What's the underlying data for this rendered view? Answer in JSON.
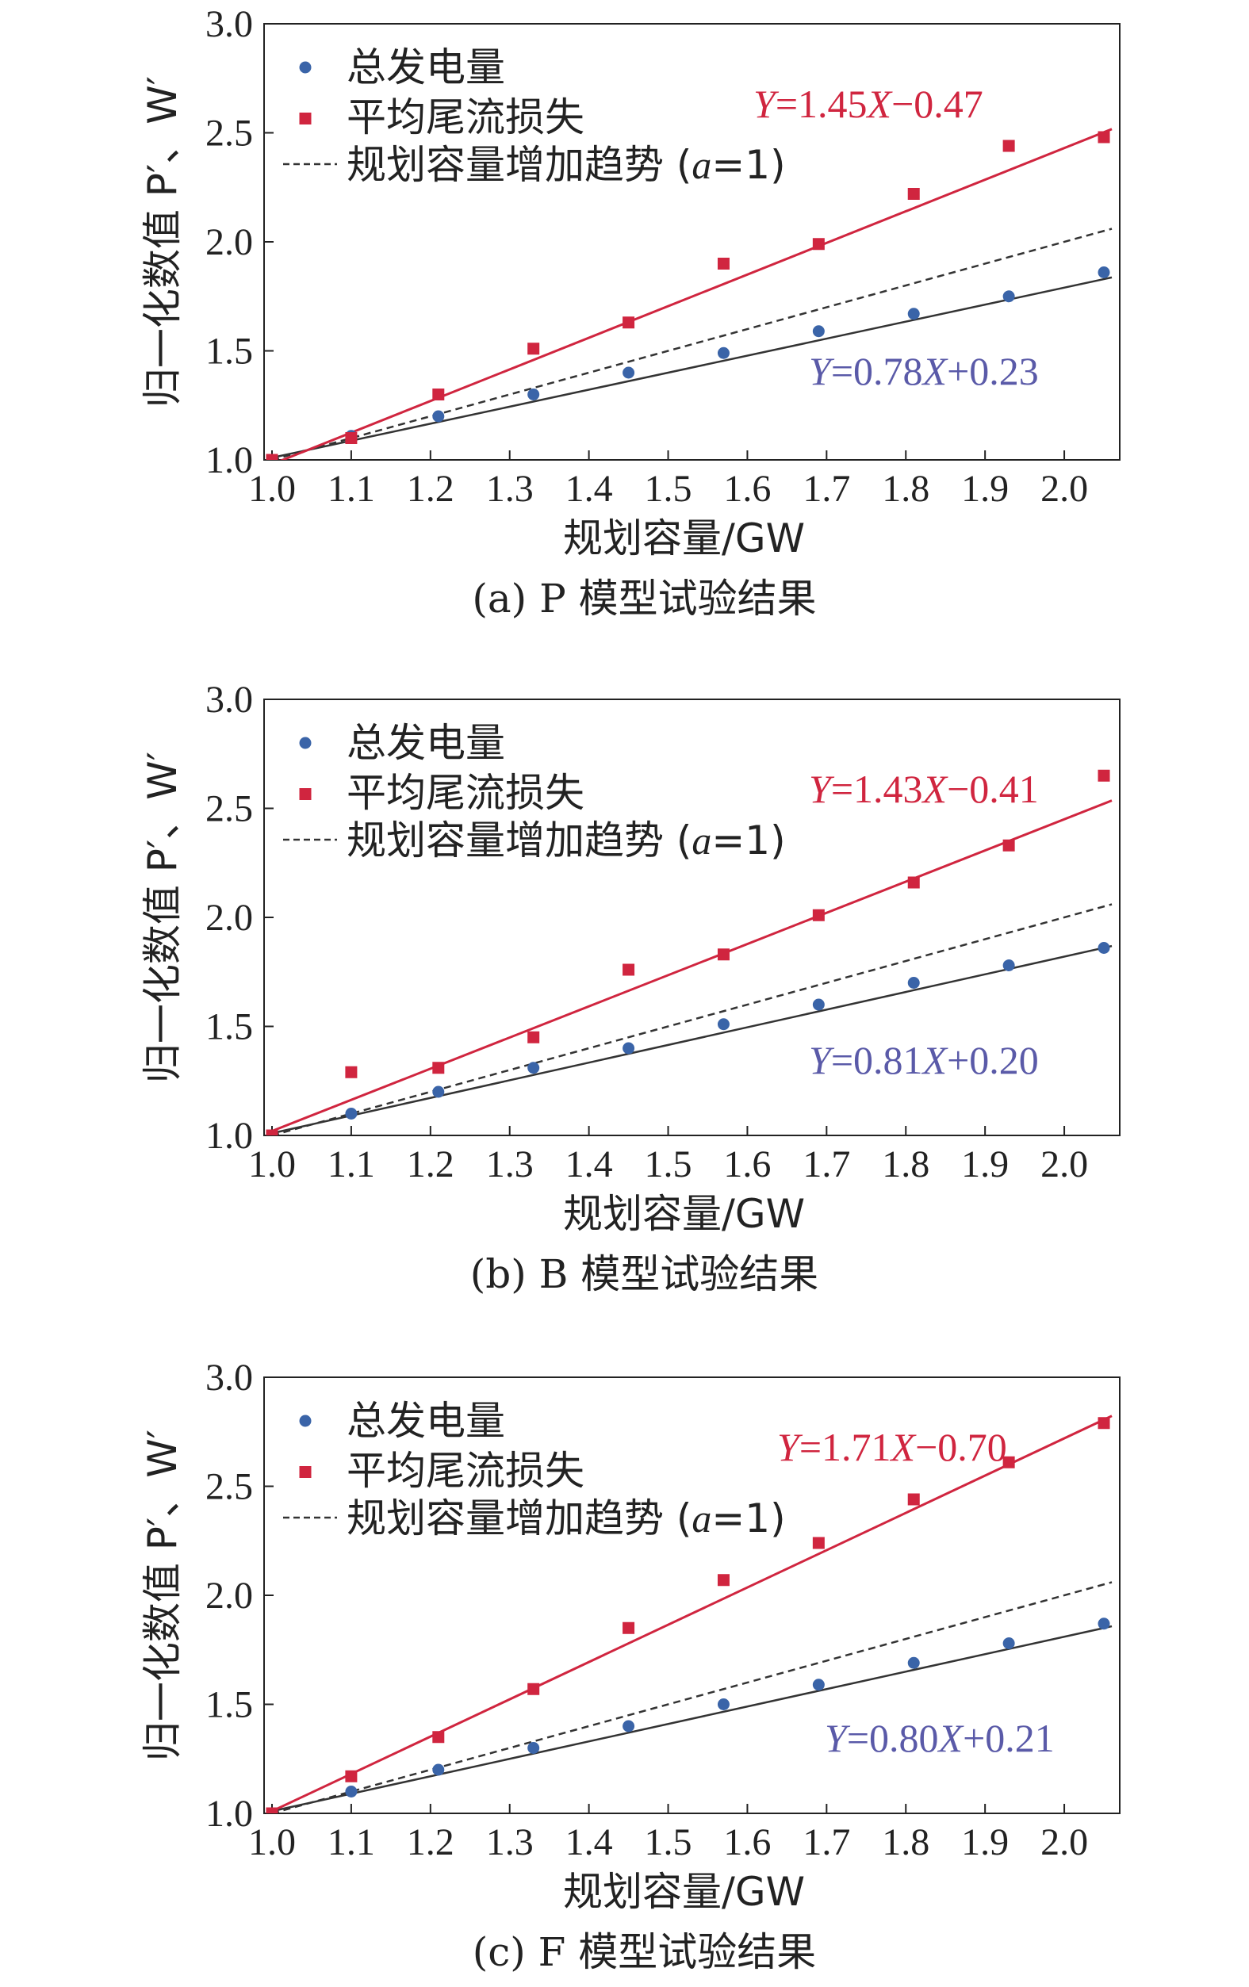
{
  "legend": {
    "series1": "总发电量",
    "series2": "平均尾流损失",
    "series3": "规划容量增加趋势 (a=1)"
  },
  "colors": {
    "blue": "#3a64a8",
    "red": "#d0253f",
    "dashed": "#333333",
    "eq_blue": "#5a5aa8"
  },
  "chart_data": [
    {
      "type": "scatter",
      "caption": "(a) P 模型试验结果",
      "xlabel": "规划容量/GW",
      "ylabel": "归一化数值 P′、W′",
      "xlim": [
        0.99,
        2.07
      ],
      "ylim": [
        1.0,
        3.0
      ],
      "xticks": [
        "1.0",
        "1.1",
        "1.2",
        "1.3",
        "1.4",
        "1.5",
        "1.6",
        "1.7",
        "1.8",
        "1.9",
        "2.0"
      ],
      "yticks": [
        "1.0",
        "1.5",
        "2.0",
        "2.5",
        "3.0"
      ],
      "series": [
        {
          "name": "总发电量",
          "x": [
            1.0,
            1.1,
            1.21,
            1.33,
            1.45,
            1.57,
            1.69,
            1.81,
            1.93,
            2.05
          ],
          "y": [
            1.0,
            1.11,
            1.2,
            1.3,
            1.4,
            1.49,
            1.59,
            1.67,
            1.75,
            1.86
          ],
          "fit": [
            0.78,
            0.23
          ]
        },
        {
          "name": "平均尾流损失",
          "x": [
            1.0,
            1.1,
            1.21,
            1.33,
            1.45,
            1.57,
            1.69,
            1.81,
            1.93,
            2.05
          ],
          "y": [
            1.0,
            1.1,
            1.3,
            1.51,
            1.63,
            1.9,
            1.99,
            2.22,
            2.44,
            2.48
          ],
          "fit": [
            1.45,
            -0.47
          ]
        },
        {
          "name": "规划容量增加趋势 (a=1)",
          "fit": [
            1.0,
            0.0
          ]
        }
      ],
      "eq_red": "Y=1.45X−0.47",
      "eq_blue": "Y=0.78X+0.23"
    },
    {
      "type": "scatter",
      "caption": "(b) B 模型试验结果",
      "xlabel": "规划容量/GW",
      "ylabel": "归一化数值 P′、W′",
      "xlim": [
        0.99,
        2.07
      ],
      "ylim": [
        1.0,
        3.0
      ],
      "xticks": [
        "1.0",
        "1.1",
        "1.2",
        "1.3",
        "1.4",
        "1.5",
        "1.6",
        "1.7",
        "1.8",
        "1.9",
        "2.0"
      ],
      "yticks": [
        "1.0",
        "1.5",
        "2.0",
        "2.5",
        "3.0"
      ],
      "series": [
        {
          "name": "总发电量",
          "x": [
            1.0,
            1.1,
            1.21,
            1.33,
            1.45,
            1.57,
            1.69,
            1.81,
            1.93,
            2.05
          ],
          "y": [
            1.0,
            1.1,
            1.2,
            1.31,
            1.4,
            1.51,
            1.6,
            1.7,
            1.78,
            1.86
          ],
          "fit": [
            0.81,
            0.2
          ]
        },
        {
          "name": "平均尾流损失",
          "x": [
            1.0,
            1.1,
            1.21,
            1.33,
            1.45,
            1.57,
            1.69,
            1.81,
            1.93,
            2.05
          ],
          "y": [
            1.0,
            1.29,
            1.31,
            1.45,
            1.76,
            1.83,
            2.01,
            2.16,
            2.33,
            2.65
          ],
          "fit": [
            1.43,
            -0.41
          ]
        },
        {
          "name": "规划容量增加趋势 (a=1)",
          "fit": [
            1.0,
            0.0
          ]
        }
      ],
      "eq_red": "Y=1.43X−0.41",
      "eq_blue": "Y=0.81X+0.20"
    },
    {
      "type": "scatter",
      "caption": "(c) F 模型试验结果",
      "xlabel": "规划容量/GW",
      "ylabel": "归一化数值 P′、W′",
      "xlim": [
        0.99,
        2.07
      ],
      "ylim": [
        1.0,
        3.0
      ],
      "xticks": [
        "1.0",
        "1.1",
        "1.2",
        "1.3",
        "1.4",
        "1.5",
        "1.6",
        "1.7",
        "1.8",
        "1.9",
        "2.0"
      ],
      "yticks": [
        "1.0",
        "1.5",
        "2.0",
        "2.5",
        "3.0"
      ],
      "series": [
        {
          "name": "总发电量",
          "x": [
            1.0,
            1.1,
            1.21,
            1.33,
            1.45,
            1.57,
            1.69,
            1.81,
            1.93,
            2.05
          ],
          "y": [
            1.0,
            1.1,
            1.2,
            1.3,
            1.4,
            1.5,
            1.59,
            1.69,
            1.78,
            1.87
          ],
          "fit": [
            0.8,
            0.21
          ]
        },
        {
          "name": "平均尾流损失",
          "x": [
            1.0,
            1.1,
            1.21,
            1.33,
            1.45,
            1.57,
            1.69,
            1.81,
            1.93,
            2.05
          ],
          "y": [
            1.0,
            1.17,
            1.35,
            1.57,
            1.85,
            2.07,
            2.24,
            2.44,
            2.61,
            2.79
          ],
          "fit": [
            1.71,
            -0.7
          ]
        },
        {
          "name": "规划容量增加趋势 (a=1)",
          "fit": [
            1.0,
            0.0
          ]
        }
      ],
      "eq_red": "Y=1.71X−0.70",
      "eq_blue": "Y=0.80X+0.21"
    }
  ]
}
